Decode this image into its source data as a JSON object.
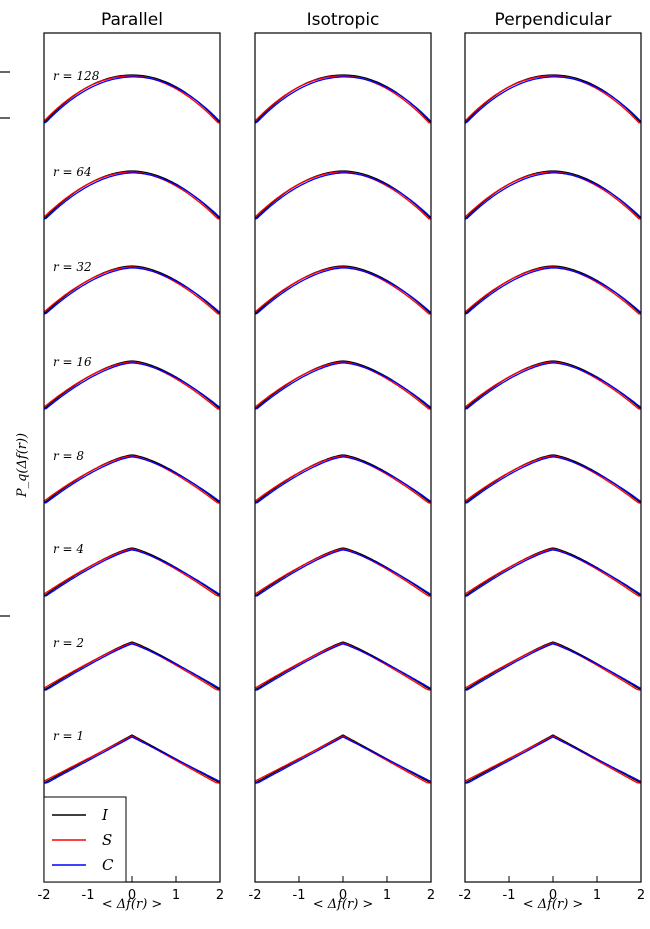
{
  "chart_data": {
    "type": "line",
    "panels": [
      {
        "title": "Parallel",
        "key": "parallel"
      },
      {
        "title": "Isotropic",
        "key": "isotropic"
      },
      {
        "title": "Perpendicular",
        "key": "perpendicular"
      }
    ],
    "xlabel": "< Δf(r) >",
    "ylabel": "P_q(Δf(r))",
    "xlim": [
      -2,
      2
    ],
    "xticks": [
      -2,
      -1,
      0,
      1,
      2
    ],
    "xtick_labels": [
      "-2",
      "-1",
      "0",
      "1",
      "2"
    ],
    "r_labels": [
      "r = 128",
      "r = 64",
      "r = 32",
      "r = 16",
      "r = 8",
      "r = 4",
      "r = 2",
      "r = 1"
    ],
    "series": [
      {
        "name": "I",
        "color": "#000000"
      },
      {
        "name": "S",
        "color": "#ff0000"
      },
      {
        "name": "C",
        "color": "#0000ff"
      }
    ],
    "legend": "lower-left of first panel",
    "grid": false
  }
}
